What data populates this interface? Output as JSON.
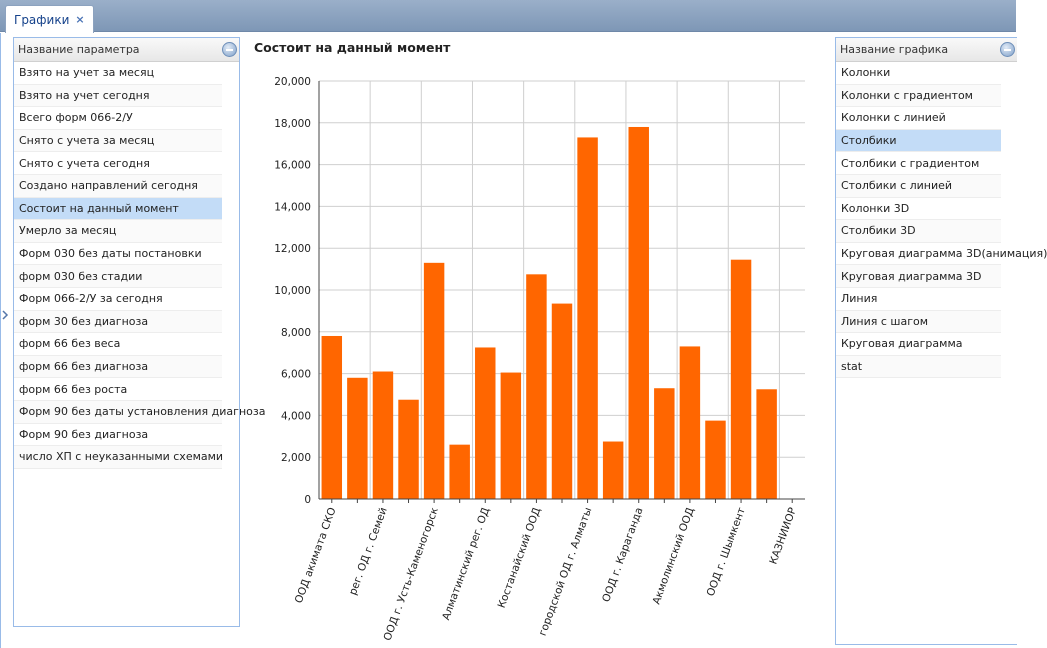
{
  "tab": {
    "label": "Графики",
    "close": "×"
  },
  "params_grid": {
    "header": "Название параметра",
    "items": [
      "Взято на учет за месяц",
      "Взято на учет сегодня",
      "Всего форм 066-2/У",
      "Снято с учета за месяц",
      "Снято с учета сегодня",
      "Создано направлений сегодня",
      "Состоит на данный момент",
      "Умерло за месяц",
      "Форм 030 без даты постановки",
      "форм 030 без стадии",
      "Форм 066-2/У за сегодня",
      "форм 30 без диагноза",
      "форм 66 без веса",
      "форм 66 без диагноза",
      "форм 66 без роста",
      "Форм 90 без даты установления диагноза",
      "Форм 90 без диагноза",
      "число ХП с неуказанными схемами"
    ],
    "selected_index": 6
  },
  "charts_grid": {
    "header": "Название графика",
    "items": [
      "Колонки",
      "Колонки с градиентом",
      "Колонки с линией",
      "Столбики",
      "Столбики с градиентом",
      "Столбики с линией",
      "Колонки 3D",
      "Столбики 3D",
      "Круговая диаграмма 3D(анимация)",
      "Круговая диаграмма 3D",
      "Линия",
      "Линия с шагом",
      "Круговая диаграмма",
      "stat"
    ],
    "selected_index": 3
  },
  "collapse_icon": "chevron-right-icon",
  "chart_data": {
    "type": "bar",
    "title": "Состоит на данный момент",
    "bar_color": "#ff6600",
    "ylim": [
      0,
      20000
    ],
    "yticks": [
      "0",
      "2,000",
      "4,000",
      "6,000",
      "8,000",
      "10,000",
      "12,000",
      "14,000",
      "16,000",
      "18,000",
      "20,000"
    ],
    "grid": true,
    "categories": [
      "ООД акимата СКО",
      "",
      "рег. ОД г. Семей",
      "",
      "ООД г. Усть-Каменогорск",
      "",
      "Алматинский рег. ОД",
      "",
      "Костанайский ООД",
      "",
      "городской ОД г. Алматы",
      "",
      "ООД г. Караганда",
      "",
      "Акмолинский ООД",
      "",
      "ООД г. Шымкент",
      "",
      "КАЗНИИОР"
    ],
    "values": [
      7800,
      5800,
      6100,
      4750,
      11300,
      2600,
      7250,
      6050,
      10750,
      9350,
      17300,
      2750,
      17800,
      5300,
      7300,
      3750,
      11450,
      5250,
      0
    ]
  }
}
